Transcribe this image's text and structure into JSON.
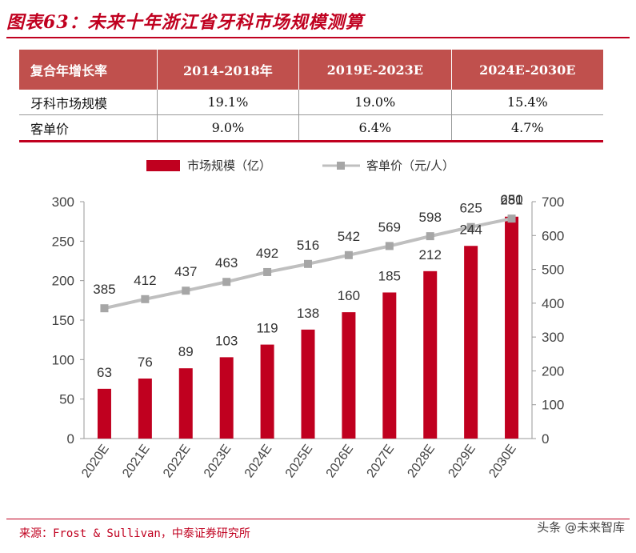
{
  "title": "图表63：未来十年浙江省牙科市场规模测算",
  "table": {
    "headers": [
      "复合年增长率",
      "2014-2018年",
      "2019E-2023E",
      "2024E-2030E"
    ],
    "rows": [
      [
        "牙科市场规模",
        "19.1%",
        "19.0%",
        "15.4%"
      ],
      [
        "客单价",
        "9.0%",
        "6.4%",
        "4.7%"
      ]
    ]
  },
  "chart_data": {
    "type": "bar+line",
    "categories": [
      "2020E",
      "2021E",
      "2022E",
      "2023E",
      "2024E",
      "2025E",
      "2026E",
      "2027E",
      "2028E",
      "2029E",
      "2030E"
    ],
    "series": [
      {
        "name": "市场规模（亿）",
        "type": "bar",
        "axis": "left",
        "values": [
          63,
          76,
          89,
          103,
          119,
          138,
          160,
          185,
          212,
          244,
          281
        ],
        "color": "#c0001f"
      },
      {
        "name": "客单价（元/人）",
        "type": "line",
        "axis": "right",
        "values": [
          385,
          412,
          437,
          463,
          492,
          516,
          542,
          569,
          598,
          625,
          650
        ],
        "color": "#bfbfbf"
      }
    ],
    "y_left": {
      "min": 0,
      "max": 300,
      "ticks": [
        0,
        50,
        100,
        150,
        200,
        250,
        300
      ]
    },
    "y_right": {
      "min": 0,
      "max": 700,
      "ticks": [
        0,
        100,
        200,
        300,
        400,
        500,
        600,
        700
      ]
    },
    "legend_position": "top",
    "grid": false
  },
  "source": "来源：Frost & Sullivan，中泰证券研究所",
  "watermark": "头条 @未来智库"
}
